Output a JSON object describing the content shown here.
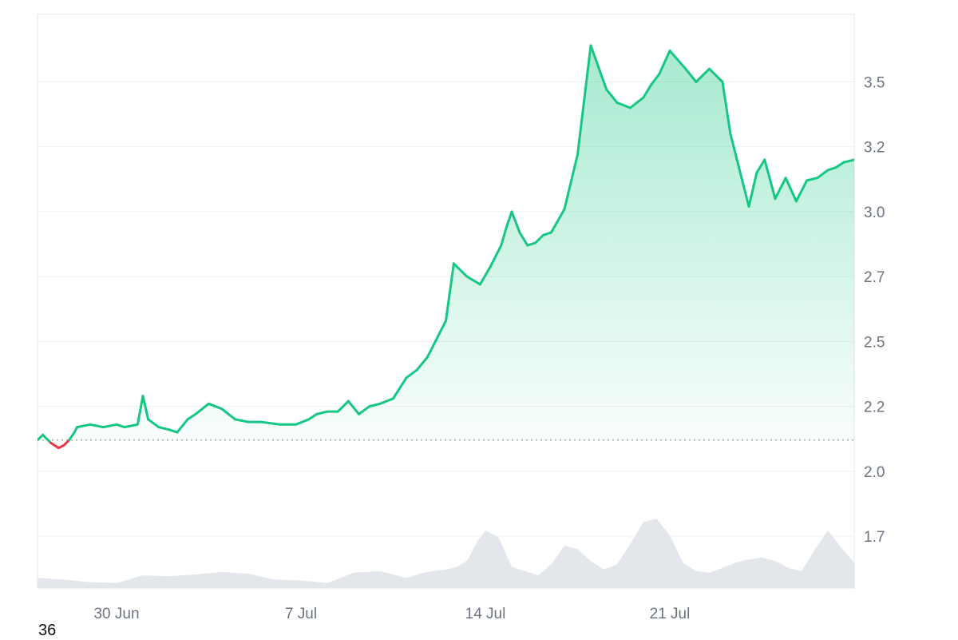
{
  "colors": {
    "up_line": "#16c784",
    "down_line": "#ea3943",
    "area_top": "#16c784",
    "volume": "#e3e7ec",
    "grid": "#eef0f3",
    "frame": "#e3e6ea",
    "baseline": "#8a8f98",
    "tick_text": "#6b7380"
  },
  "corner_label": "36",
  "chart_data": {
    "type": "area",
    "title": "",
    "xlabel": "",
    "ylabel": "",
    "x_tick_labels": [
      "30 Jun",
      "7 Jul",
      "14 Jul",
      "21 Jul"
    ],
    "x_tick_days": [
      3,
      10,
      17,
      24
    ],
    "x_range_days": [
      0,
      31
    ],
    "y_tick_labels": [
      "3.5",
      "3.2",
      "3.0",
      "2.7",
      "2.5",
      "2.2",
      "2.0",
      "1.7"
    ],
    "y_tick_values": [
      3.5,
      3.25,
      3.0,
      2.75,
      2.5,
      2.25,
      2.0,
      1.75
    ],
    "ylim": [
      1.55,
      3.76
    ],
    "baseline": 2.12,
    "axis_position": "right",
    "grid": true,
    "price_series": {
      "day": [
        0,
        0.2,
        0.5,
        0.8,
        1.0,
        1.2,
        1.4,
        1.5,
        2.0,
        2.5,
        3.0,
        3.3,
        3.8,
        4.0,
        4.2,
        4.6,
        5.0,
        5.3,
        5.7,
        6.0,
        6.5,
        7.0,
        7.5,
        8.0,
        8.5,
        9.2,
        9.8,
        10.3,
        10.6,
        11.0,
        11.4,
        11.8,
        12.2,
        12.6,
        13.0,
        13.5,
        14.0,
        14.4,
        14.8,
        15.2,
        15.5,
        15.8,
        16.3,
        16.8,
        17.2,
        17.6,
        17.8,
        18.0,
        18.3,
        18.6,
        18.9,
        19.2,
        19.5,
        20.0,
        20.5,
        21.0,
        21.6,
        22.0,
        22.5,
        23.0,
        23.3,
        23.6,
        24.0,
        24.6,
        25.0,
        25.5,
        26.0,
        26.3,
        26.6,
        27.0,
        27.3,
        27.6,
        28.0,
        28.4,
        28.8,
        29.2,
        29.6,
        30.0,
        30.3,
        30.6,
        31.0
      ],
      "price": [
        2.12,
        2.14,
        2.11,
        2.09,
        2.1,
        2.12,
        2.15,
        2.17,
        2.18,
        2.17,
        2.18,
        2.17,
        2.18,
        2.29,
        2.2,
        2.17,
        2.16,
        2.15,
        2.2,
        2.22,
        2.26,
        2.24,
        2.2,
        2.19,
        2.19,
        2.18,
        2.18,
        2.2,
        2.22,
        2.23,
        2.23,
        2.27,
        2.22,
        2.25,
        2.26,
        2.28,
        2.36,
        2.39,
        2.44,
        2.52,
        2.58,
        2.8,
        2.75,
        2.72,
        2.79,
        2.87,
        2.94,
        3.0,
        2.92,
        2.87,
        2.88,
        2.91,
        2.92,
        3.01,
        3.22,
        3.64,
        3.47,
        3.42,
        3.4,
        3.44,
        3.49,
        3.53,
        3.62,
        3.55,
        3.5,
        3.55,
        3.5,
        3.3,
        3.18,
        3.02,
        3.15,
        3.2,
        3.05,
        3.13,
        3.04,
        3.12,
        3.13,
        3.16,
        3.17,
        3.19,
        3.2
      ]
    },
    "volume_series": {
      "day": [
        0,
        1,
        2,
        3,
        4,
        5,
        6,
        7,
        8,
        9,
        10,
        11,
        12,
        13,
        14,
        14.5,
        15,
        15.5,
        15.9,
        16.3,
        16.7,
        17,
        17.5,
        18,
        18.5,
        19,
        19.5,
        20,
        20.5,
        21,
        21.5,
        22,
        22.5,
        23,
        23.5,
        24,
        24.5,
        25,
        25.5,
        26,
        26.5,
        27,
        27.5,
        28,
        28.5,
        29,
        29.5,
        30,
        30.5,
        31
      ],
      "relative_volume": [
        0.12,
        0.1,
        0.07,
        0.06,
        0.15,
        0.14,
        0.16,
        0.19,
        0.17,
        0.1,
        0.09,
        0.06,
        0.18,
        0.2,
        0.12,
        0.17,
        0.2,
        0.22,
        0.25,
        0.32,
        0.55,
        0.68,
        0.6,
        0.25,
        0.2,
        0.15,
        0.28,
        0.5,
        0.46,
        0.32,
        0.22,
        0.28,
        0.52,
        0.78,
        0.82,
        0.62,
        0.3,
        0.2,
        0.18,
        0.24,
        0.3,
        0.34,
        0.36,
        0.32,
        0.24,
        0.2,
        0.45,
        0.68,
        0.48,
        0.3
      ]
    }
  }
}
